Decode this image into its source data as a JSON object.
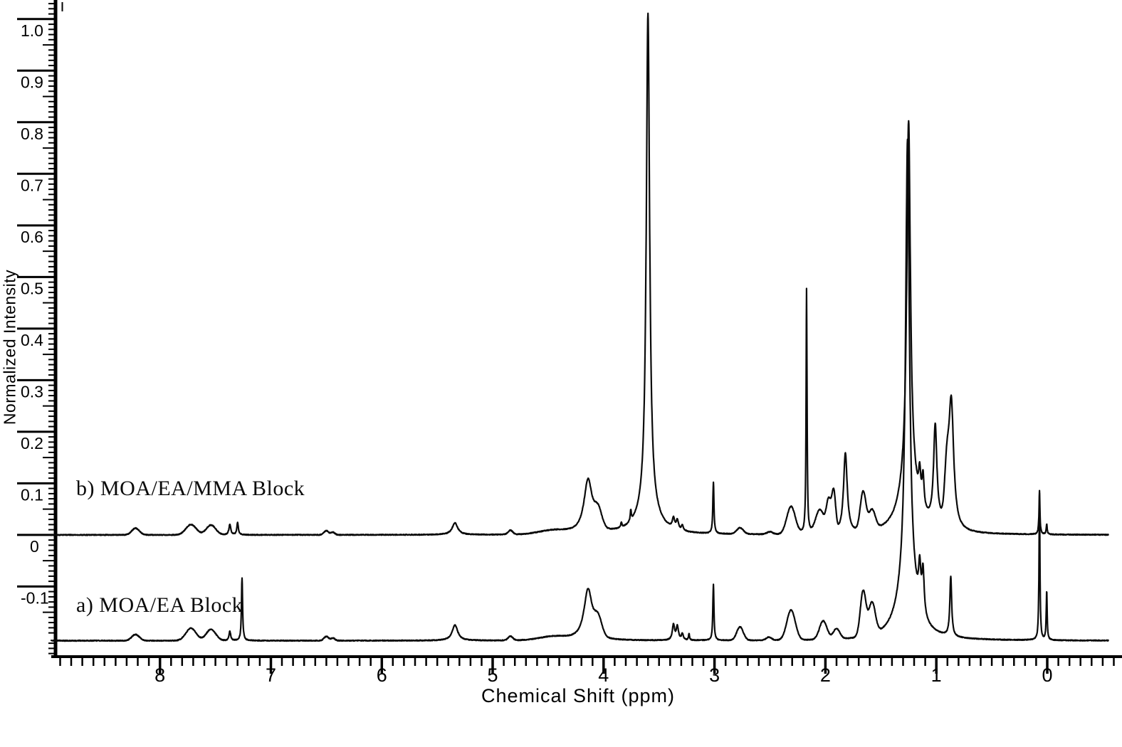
{
  "chart_data": {
    "type": "line",
    "title": "",
    "xlabel": "Chemical Shift (ppm)",
    "ylabel": "Normalized Intensity",
    "legend_position": "none",
    "grid": false,
    "x_axis": {
      "min": -0.674,
      "max": 8.98,
      "reversed": true,
      "minor_tick_step": 0.1,
      "major_tick_step": 1,
      "ticks": [
        {
          "v": 8,
          "label": "8"
        },
        {
          "v": 7,
          "label": "7"
        },
        {
          "v": 6,
          "label": "6"
        },
        {
          "v": 5,
          "label": "5"
        },
        {
          "v": 4,
          "label": "4"
        },
        {
          "v": 3,
          "label": "3"
        },
        {
          "v": 2,
          "label": "2"
        },
        {
          "v": 1,
          "label": "1"
        },
        {
          "v": 0,
          "label": "0"
        }
      ]
    },
    "y_axis": {
      "min": -0.236,
      "max": 1.037,
      "minor_tick_step": 0.01,
      "medium_tick_step": 0.05,
      "major_tick_step": 0.1,
      "ticks": [
        {
          "v": 1.0,
          "label": "1.0"
        },
        {
          "v": 0.9,
          "label": "0.9"
        },
        {
          "v": 0.8,
          "label": "0.8"
        },
        {
          "v": 0.7,
          "label": "0.7"
        },
        {
          "v": 0.6,
          "label": "0.6"
        },
        {
          "v": 0.5,
          "label": "0.5"
        },
        {
          "v": 0.4,
          "label": "0.4"
        },
        {
          "v": 0.3,
          "label": "0.3"
        },
        {
          "v": 0.2,
          "label": "0.2"
        },
        {
          "v": 0.1,
          "label": "0.1"
        },
        {
          "v": 0.0,
          "label": "0"
        },
        {
          "v": -0.1,
          "label": "-0.1"
        }
      ]
    },
    "line_color": "#0a0a0a",
    "peak_fields": [
      "ppm",
      "height_above_baseline",
      "half_width_ppm",
      "shape"
    ],
    "series": [
      {
        "label": "b) MOA/EA/MMA Block",
        "baseline": 0.0,
        "end_ppm": -0.55,
        "peaks": [
          [
            8.22,
            0.013,
            0.04,
            "g"
          ],
          [
            7.72,
            0.02,
            0.055,
            "g"
          ],
          [
            7.54,
            0.019,
            0.05,
            "g"
          ],
          [
            7.37,
            0.02,
            0.01,
            "l"
          ],
          [
            7.3,
            0.024,
            0.008,
            "l"
          ],
          [
            6.5,
            0.008,
            0.025,
            "g"
          ],
          [
            6.44,
            0.005,
            0.02,
            "g"
          ],
          [
            5.34,
            0.023,
            0.03,
            "l"
          ],
          [
            4.84,
            0.008,
            0.025,
            "g"
          ],
          [
            4.45,
            0.007,
            0.15,
            "g"
          ],
          [
            4.14,
            0.105,
            0.045,
            "l"
          ],
          [
            4.05,
            0.035,
            0.04,
            "g"
          ],
          [
            3.84,
            0.01,
            0.006,
            "l"
          ],
          [
            3.755,
            0.02,
            0.006,
            "l"
          ],
          [
            3.6,
            0.96,
            0.018,
            "l"
          ],
          [
            3.6,
            0.05,
            0.1,
            "l"
          ],
          [
            3.37,
            0.02,
            0.012,
            "l"
          ],
          [
            3.335,
            0.018,
            0.012,
            "l"
          ],
          [
            3.29,
            0.01,
            0.01,
            "l"
          ],
          [
            3.01,
            0.1,
            0.006,
            "l"
          ],
          [
            2.77,
            0.012,
            0.035,
            "g"
          ],
          [
            2.5,
            0.005,
            0.03,
            "g"
          ],
          [
            2.31,
            0.053,
            0.045,
            "g"
          ],
          [
            2.17,
            0.475,
            0.005,
            "l"
          ],
          [
            2.05,
            0.045,
            0.045,
            "g"
          ],
          [
            1.97,
            0.06,
            0.025,
            "g"
          ],
          [
            1.925,
            0.075,
            0.02,
            "g"
          ],
          [
            1.82,
            0.155,
            0.02,
            "l"
          ],
          [
            1.66,
            0.075,
            0.03,
            "g"
          ],
          [
            1.58,
            0.038,
            0.035,
            "g"
          ],
          [
            1.25,
            0.68,
            0.019,
            "l"
          ],
          [
            1.25,
            0.12,
            0.085,
            "l"
          ],
          [
            1.15,
            0.055,
            0.011,
            "l"
          ],
          [
            1.12,
            0.062,
            0.011,
            "l"
          ],
          [
            1.01,
            0.19,
            0.018,
            "l"
          ],
          [
            0.905,
            0.09,
            0.022,
            "g"
          ],
          [
            0.865,
            0.25,
            0.026,
            "l"
          ],
          [
            0.07,
            0.085,
            0.005,
            "l"
          ],
          [
            0.005,
            0.02,
            0.005,
            "l"
          ]
        ]
      },
      {
        "label": "a) MOA/EA Block",
        "baseline": -0.205,
        "end_ppm": -0.55,
        "peaks": [
          [
            8.22,
            0.012,
            0.04,
            "g"
          ],
          [
            7.72,
            0.024,
            0.055,
            "g"
          ],
          [
            7.54,
            0.022,
            0.05,
            "g"
          ],
          [
            7.37,
            0.018,
            0.009,
            "l"
          ],
          [
            7.26,
            0.122,
            0.006,
            "l"
          ],
          [
            6.5,
            0.008,
            0.025,
            "g"
          ],
          [
            6.44,
            0.005,
            0.02,
            "g"
          ],
          [
            5.34,
            0.03,
            0.03,
            "l"
          ],
          [
            4.84,
            0.008,
            0.025,
            "g"
          ],
          [
            4.45,
            0.007,
            0.15,
            "g"
          ],
          [
            4.14,
            0.1,
            0.045,
            "l"
          ],
          [
            4.05,
            0.034,
            0.04,
            "g"
          ],
          [
            3.37,
            0.03,
            0.012,
            "l"
          ],
          [
            3.335,
            0.026,
            0.012,
            "l"
          ],
          [
            3.29,
            0.012,
            0.01,
            "l"
          ],
          [
            3.23,
            0.013,
            0.005,
            "l"
          ],
          [
            3.01,
            0.108,
            0.006,
            "l"
          ],
          [
            2.77,
            0.026,
            0.035,
            "g"
          ],
          [
            2.51,
            0.006,
            0.03,
            "g"
          ],
          [
            2.31,
            0.058,
            0.045,
            "g"
          ],
          [
            2.02,
            0.036,
            0.04,
            "g"
          ],
          [
            1.9,
            0.02,
            0.035,
            "g"
          ],
          [
            1.66,
            0.088,
            0.03,
            "g"
          ],
          [
            1.58,
            0.062,
            0.035,
            "g"
          ],
          [
            1.26,
            0.84,
            0.02,
            "l"
          ],
          [
            1.26,
            0.13,
            0.09,
            "l"
          ],
          [
            1.15,
            0.075,
            0.012,
            "l"
          ],
          [
            1.12,
            0.085,
            0.012,
            "l"
          ],
          [
            0.87,
            0.115,
            0.01,
            "l"
          ],
          [
            0.07,
            0.285,
            0.005,
            "l"
          ],
          [
            0.005,
            0.095,
            0.005,
            "l"
          ]
        ]
      }
    ]
  }
}
